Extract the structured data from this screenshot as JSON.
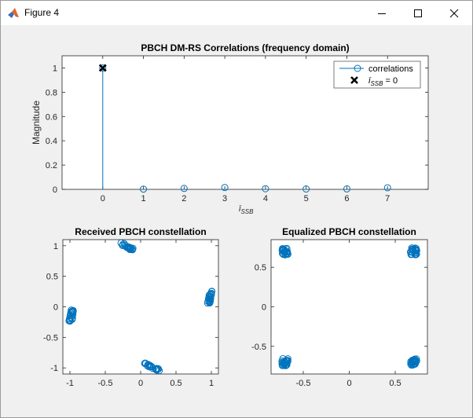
{
  "window": {
    "title": "Figure 4",
    "icons": {
      "app": "matlab-icon",
      "minimize": "minimize-icon",
      "maximize": "maximize-icon",
      "close": "close-icon"
    }
  },
  "colors": {
    "series": "#0072bd",
    "marker": "#000000",
    "axes_bg": "#ffffff",
    "figure_bg": "#f0f0f0"
  },
  "chart_data": [
    {
      "type": "scatter",
      "title": "PBCH DM-RS Correlations (frequency domain)",
      "xlabel": "ī_SSB",
      "ylabel": "Magnitude",
      "xlim": [
        -1,
        8
      ],
      "ylim": [
        0,
        1.1
      ],
      "x_ticks": [
        "0",
        "1",
        "2",
        "3",
        "4",
        "5",
        "6",
        "7"
      ],
      "y_ticks": [
        "0",
        "0.2",
        "0.4",
        "0.6",
        "0.8",
        "1"
      ],
      "grid": false,
      "legend_position": "top-right",
      "series": [
        {
          "name": "correlations",
          "style": "stem",
          "x": [
            0,
            1,
            2,
            3,
            4,
            5,
            6,
            7
          ],
          "values": [
            1.0,
            0.002,
            0.008,
            0.015,
            0.005,
            0.003,
            0.004,
            0.013
          ]
        },
        {
          "name": "ī_SSB = 0",
          "style": "x-marker",
          "x": [
            0
          ],
          "values": [
            1.0
          ]
        }
      ]
    },
    {
      "type": "scatter",
      "title": "Received PBCH constellation",
      "xlim": [
        -1.1,
        1.1
      ],
      "ylim": [
        -1.1,
        1.1
      ],
      "x_ticks": [
        "-1",
        "-0.5",
        "0",
        "0.5",
        "1"
      ],
      "y_ticks": [
        "-1",
        "-0.5",
        "0",
        "0.5",
        "1"
      ],
      "clusters": [
        {
          "x": [
            -0.96,
            -1.0
          ],
          "y": [
            -0.05,
            -0.25
          ]
        },
        {
          "x": [
            -0.27,
            -0.1
          ],
          "y": [
            1.03,
            0.93
          ]
        },
        {
          "x": [
            0.05,
            0.26
          ],
          "y": [
            -0.93,
            -1.03
          ]
        },
        {
          "x": [
            0.96,
            1.0
          ],
          "y": [
            0.06,
            0.26
          ]
        }
      ]
    },
    {
      "type": "scatter",
      "title": "Equalized PBCH constellation",
      "xlim": [
        -0.85,
        0.85
      ],
      "ylim": [
        -0.85,
        0.85
      ],
      "x_ticks": [
        "-0.5",
        "0",
        "0.5"
      ],
      "y_ticks": [
        "-0.5",
        "0",
        "0.5"
      ],
      "clusters": [
        {
          "cx": -0.7,
          "cy": 0.7
        },
        {
          "cx": 0.7,
          "cy": 0.7
        },
        {
          "cx": -0.7,
          "cy": -0.7
        },
        {
          "cx": 0.7,
          "cy": -0.7
        }
      ]
    }
  ]
}
